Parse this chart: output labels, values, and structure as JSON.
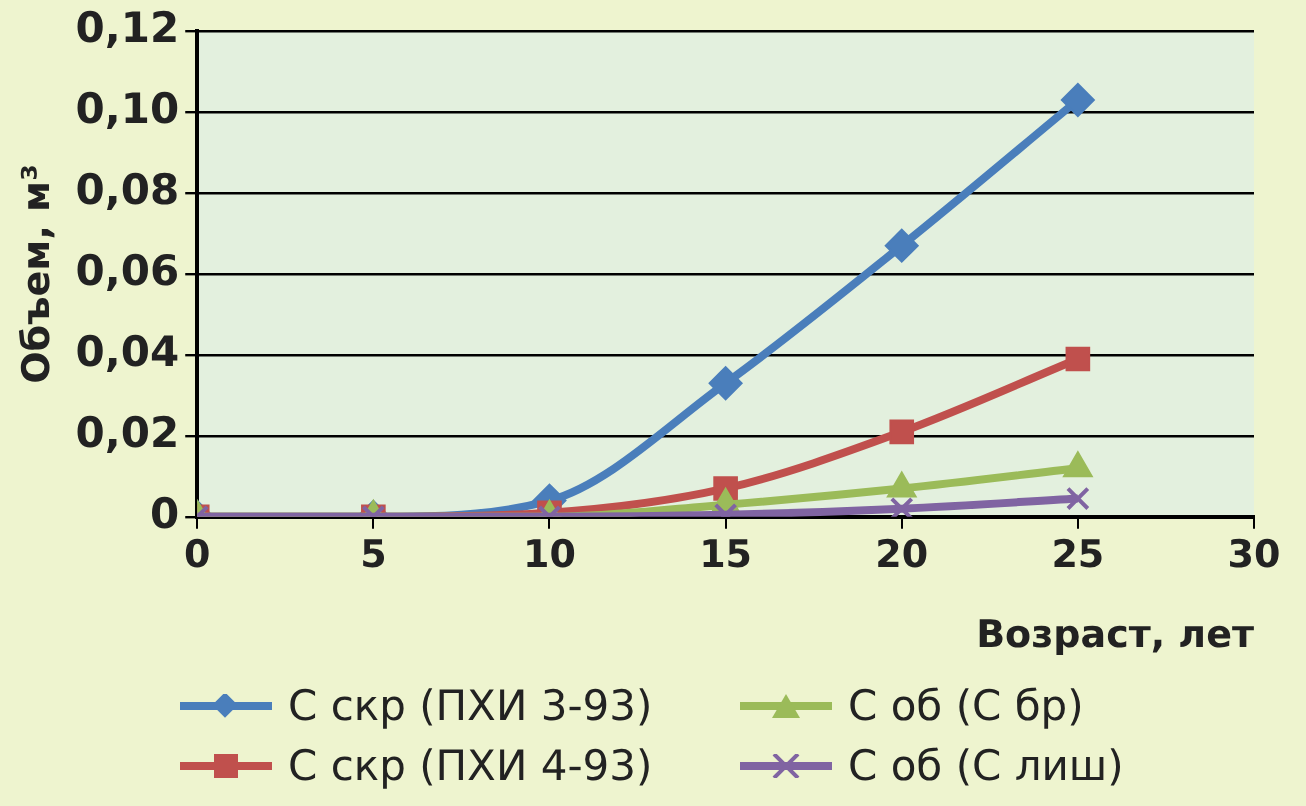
{
  "chart_data": {
    "type": "line",
    "xlabel": "Возраст, лет",
    "ylabel": "Объем, м³",
    "x": [
      0,
      5,
      10,
      15,
      20,
      25
    ],
    "xlim": [
      0,
      30
    ],
    "xticks": [
      0,
      5,
      10,
      15,
      20,
      25,
      30
    ],
    "ylim": [
      0,
      0.12
    ],
    "yticks": [
      0,
      {
        "value": 0.02,
        "label": "0,02"
      },
      {
        "value": 0.04,
        "label": "0,04"
      },
      {
        "value": 0.06,
        "label": "0,06"
      },
      {
        "value": 0.08,
        "label": "0,08"
      },
      {
        "value": 0.1,
        "label": "0,10"
      },
      {
        "value": 0.12,
        "label": "0,12"
      }
    ],
    "grid": "y",
    "legend": "bottom",
    "series": [
      {
        "name": "С скр (ПХИ 3-93)",
        "color": "#4a7ebb",
        "marker": "diamond",
        "values": [
          0,
          0,
          0.004,
          0.033,
          0.067,
          0.103
        ]
      },
      {
        "name": "С скр (ПХИ 4-93)",
        "color": "#c0504d",
        "marker": "square",
        "values": [
          0,
          0,
          0.001,
          0.007,
          0.021,
          0.039
        ]
      },
      {
        "name": "С об (С бр)",
        "color": "#9bbb59",
        "marker": "triangle",
        "values": [
          0,
          0,
          0,
          0.003,
          0.007,
          0.012
        ]
      },
      {
        "name": "С об (С лиш)",
        "color": "#8064a2",
        "marker": "cross",
        "values": [
          0,
          0,
          0,
          0.0005,
          0.002,
          0.0045
        ]
      }
    ]
  }
}
